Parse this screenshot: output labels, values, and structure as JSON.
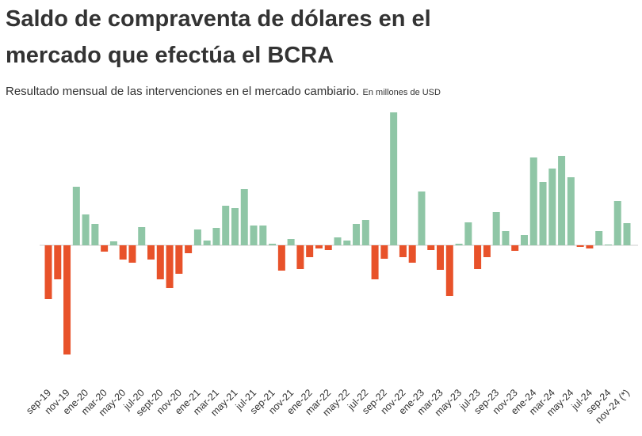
{
  "chart_data": {
    "type": "bar",
    "title": "Saldo de compraventa de dólares en el mercado que efectúa el BCRA",
    "subtitle": "Resultado  mensual de las intervenciones en el mercado cambiario.",
    "unit_note": "En millones de USD",
    "positive_color": "#8fc6a6",
    "negative_color": "#e8522a",
    "categories": [
      "sep-19",
      null,
      "nov-19",
      null,
      "ene-20",
      null,
      "mar-20",
      null,
      "may-20",
      null,
      "jul-20",
      null,
      "sept-20",
      null,
      "nov-20",
      null,
      "ene-21",
      null,
      "mar-21",
      null,
      "may-21",
      null,
      "jul-21",
      null,
      "sep-21",
      null,
      "nov-21",
      null,
      "ene-22",
      null,
      "mar-22",
      null,
      "may-22",
      null,
      "jul-22",
      null,
      "sep-22",
      null,
      "nov-22",
      null,
      "ene-23",
      null,
      "mar-23",
      null,
      "may-23",
      null,
      "jul-23",
      null,
      "sep-23",
      null,
      "nov-23",
      null,
      "ene-24",
      null,
      "mar-24",
      null,
      "may-24",
      null,
      "jul-24",
      null,
      "sep-24",
      null,
      "nov-24 (*)"
    ],
    "values": [
      -2040,
      -1290,
      -4140,
      2220,
      1170,
      810,
      -240,
      150,
      -540,
      -660,
      690,
      -540,
      -1290,
      -1620,
      -1080,
      -300,
      600,
      180,
      660,
      1500,
      1410,
      2130,
      750,
      750,
      60,
      -960,
      240,
      -900,
      -450,
      -120,
      -180,
      300,
      180,
      810,
      960,
      -1290,
      -510,
      5040,
      -450,
      -660,
      2040,
      -180,
      -930,
      -1920,
      60,
      870,
      -900,
      -450,
      1260,
      540,
      -210,
      390,
      3330,
      2400,
      2910,
      3390,
      2580,
      -60,
      -120,
      540,
      30,
      1680,
      840
    ]
  }
}
